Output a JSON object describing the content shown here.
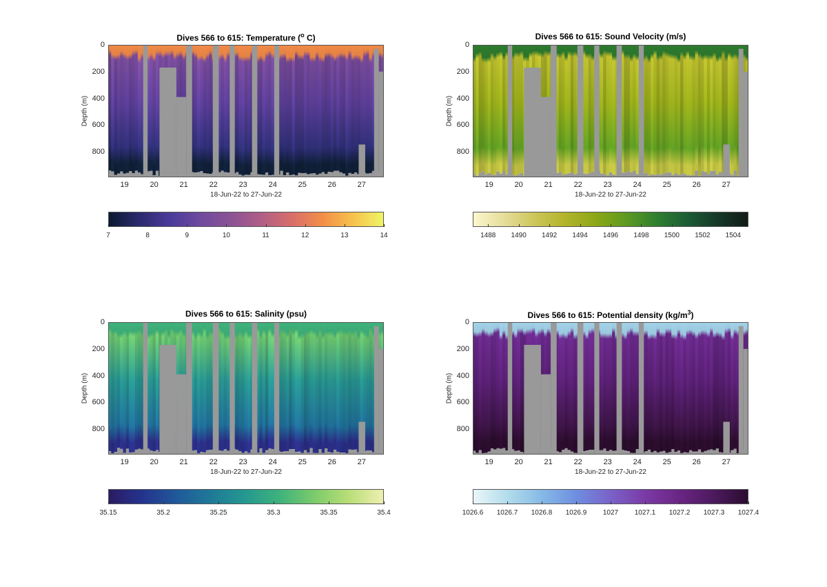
{
  "chart_data": [
    {
      "type": "heatmap",
      "title": "Dives 566 to 615: Temperature (",
      "title_sup": "o",
      "title_tail": " C)",
      "ylabel": "Depth (m)",
      "xlabel": "18-Jun-22 to 27-Jun-22",
      "yticks": [
        "0",
        "200",
        "400",
        "600",
        "800"
      ],
      "xticks": [
        "19",
        "20",
        "21",
        "22",
        "23",
        "24",
        "25",
        "26",
        "27"
      ],
      "xlim": [
        18.45,
        27.75
      ],
      "ylim": [
        0,
        990
      ],
      "colorbar": {
        "ticks": [
          7,
          8,
          9,
          10,
          11,
          12,
          13,
          14
        ],
        "range": [
          7,
          14
        ],
        "colors": [
          "#0b1a30",
          "#2c2a6e",
          "#4a3a9a",
          "#6f4a9e",
          "#8c5296",
          "#b05e86",
          "#d86e6a",
          "#f28e48",
          "#f7c14d",
          "#eef564"
        ]
      },
      "profile": {
        "surface_color": "#f18a48",
        "upper_color": "#7a4c9c",
        "mid_color": "#5d3f9a",
        "deep_color": "#30307a",
        "bottom_color": "#102038"
      }
    },
    {
      "type": "heatmap",
      "title": "Dives 566 to 615: Sound Velocity (m/s)",
      "title_sup": "",
      "title_tail": "",
      "ylabel": "Depth (m)",
      "xlabel": "18-Jun-22 to 27-Jun-22",
      "yticks": [
        "0",
        "200",
        "400",
        "600",
        "800"
      ],
      "xticks": [
        "19",
        "20",
        "21",
        "22",
        "23",
        "24",
        "25",
        "26",
        "27"
      ],
      "xlim": [
        18.45,
        27.75
      ],
      "ylim": [
        0,
        990
      ],
      "colorbar": {
        "ticks": [
          1488,
          1490,
          1492,
          1494,
          1496,
          1498,
          1500,
          1502,
          1504
        ],
        "range": [
          1487,
          1505
        ],
        "colors": [
          "#fbf7cf",
          "#e6dd9a",
          "#cdc65a",
          "#b3b42a",
          "#8da716",
          "#5e9a20",
          "#2f7f30",
          "#1d5d35",
          "#16392a",
          "#111a16"
        ]
      },
      "profile": {
        "surface_color": "#2d7b2e",
        "upper_color": "#b6b82c",
        "mid_color": "#98ab1a",
        "deep_color": "#5f9c22",
        "bottom_color": "#bcbd40"
      }
    },
    {
      "type": "heatmap",
      "title": "Dives 566 to 615: Salinity (psu)",
      "title_sup": "",
      "title_tail": "",
      "ylabel": "Depth (m)",
      "xlabel": "18-Jun-22 to 27-Jun-22",
      "yticks": [
        "0",
        "200",
        "400",
        "600",
        "800"
      ],
      "xticks": [
        "19",
        "20",
        "21",
        "22",
        "23",
        "24",
        "25",
        "26",
        "27"
      ],
      "xlim": [
        18.45,
        27.75
      ],
      "ylim": [
        0,
        990
      ],
      "colorbar": {
        "ticks": [
          "35.15",
          "35.2",
          "35.25",
          "35.3",
          "35.35",
          "35.4"
        ],
        "tick_values": [
          35.15,
          35.2,
          35.25,
          35.3,
          35.35,
          35.4
        ],
        "range": [
          35.15,
          35.4
        ],
        "colors": [
          "#2b1b64",
          "#24348e",
          "#1f5a9a",
          "#1f7a98",
          "#25998f",
          "#3fb37c",
          "#7ccb6a",
          "#b9de78",
          "#efefb0"
        ]
      },
      "profile": {
        "surface_color": "#3fb37c",
        "upper_color": "#6cc46c",
        "mid_color": "#27948e",
        "deep_color": "#1f6f98",
        "bottom_color": "#2a2e86"
      }
    },
    {
      "type": "heatmap",
      "title": "Dives 566 to 615: Potential density (kg/m",
      "title_sup": "3",
      "title_tail": ")",
      "ylabel": "Depth (m)",
      "xlabel": "18-Jun-22 to 27-Jun-22",
      "yticks": [
        "0",
        "200",
        "400",
        "600",
        "800"
      ],
      "xticks": [
        "19",
        "20",
        "21",
        "22",
        "23",
        "24",
        "25",
        "26",
        "27"
      ],
      "xlim": [
        18.45,
        27.75
      ],
      "ylim": [
        0,
        990
      ],
      "colorbar": {
        "ticks": [
          "1026.6",
          "1026.7",
          "1026.8",
          "1026.9",
          "1027",
          "1027.1",
          "1027.2",
          "1027.3",
          "1027.4"
        ],
        "tick_values": [
          1026.6,
          1026.7,
          1026.8,
          1026.9,
          1027,
          1027.1,
          1027.2,
          1027.3,
          1027.4
        ],
        "range": [
          1026.6,
          1027.4
        ],
        "colors": [
          "#eaf6f8",
          "#b2dcec",
          "#86b9e6",
          "#6e8ee0",
          "#7a62c8",
          "#7b3aa6",
          "#6a2584",
          "#4c1a5e",
          "#2c0c30"
        ]
      },
      "profile": {
        "surface_color": "#a3d3ea",
        "upper_color": "#6a2a8c",
        "mid_color": "#5a2075",
        "deep_color": "#3c1446",
        "bottom_color": "#2a0c2c"
      }
    }
  ],
  "gaps": {
    "gap_color": "#999999",
    "columns": [
      {
        "x0": 19.63,
        "x1": 19.78,
        "depth": 0
      },
      {
        "x0": 20.18,
        "x1": 20.75,
        "depth": 170
      },
      {
        "x0": 20.75,
        "x1": 21.08,
        "depth": 390
      },
      {
        "x0": 21.08,
        "x1": 21.28,
        "depth": 0
      },
      {
        "x0": 21.98,
        "x1": 22.18,
        "depth": 0
      },
      {
        "x0": 22.55,
        "x1": 22.72,
        "depth": 0
      },
      {
        "x0": 23.3,
        "x1": 23.48,
        "depth": 0
      },
      {
        "x0": 24.05,
        "x1": 24.22,
        "depth": 0
      },
      {
        "x0": 26.9,
        "x1": 27.12,
        "depth": 745
      },
      {
        "x0": 27.42,
        "x1": 27.58,
        "depth": 30
      },
      {
        "x0": 27.58,
        "x1": 27.75,
        "depth": 200
      }
    ]
  }
}
